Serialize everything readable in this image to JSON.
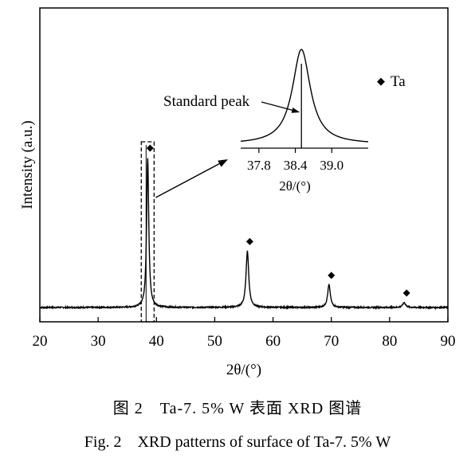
{
  "chart_data": {
    "type": "line",
    "xlabel": "2θ/(°)",
    "ylabel": "Intensity (a.u.)",
    "xlim": [
      20,
      90
    ],
    "x_ticks": [
      "20",
      "30",
      "40",
      "50",
      "60",
      "70",
      "80",
      "90"
    ],
    "legend": {
      "marker": "◆",
      "label": "Ta",
      "placement": "top-right"
    },
    "baseline": 0.07,
    "peaks": [
      {
        "x": 38.5,
        "height": 1.0,
        "width": 0.22,
        "marker": true
      },
      {
        "x": 55.6,
        "height": 0.42,
        "width": 0.28,
        "marker": true
      },
      {
        "x": 69.6,
        "height": 0.21,
        "width": 0.28,
        "marker": true
      },
      {
        "x": 82.5,
        "height": 0.1,
        "width": 0.3,
        "marker": true
      }
    ],
    "highlight_box": {
      "x_range": [
        37.4,
        39.6
      ]
    },
    "inset": {
      "xlabel": "2θ/(°)",
      "xlim": [
        37.5,
        39.6
      ],
      "x_ticks": [
        "37.8",
        "38.4",
        "39.0"
      ],
      "peak_center": 38.5,
      "peak_width": 0.18,
      "standard_peak_x": 38.5,
      "annotation": "Standard peak"
    }
  },
  "caption": {
    "chinese": "图 2　Ta-7. 5% W 表面 XRD 图谱",
    "english": "Fig. 2　XRD patterns of surface of Ta-7. 5% W"
  }
}
